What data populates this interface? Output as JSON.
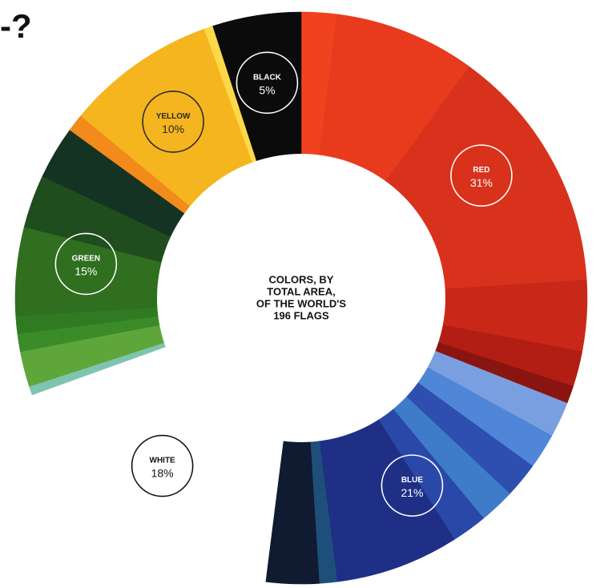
{
  "corner_text": "-?",
  "chart_data": {
    "type": "donut",
    "center_label": [
      "COLORS, BY",
      "TOTAL AREA,",
      "OF THE WORLD'S",
      "196 FLAGS"
    ],
    "start_angle_deg": 0,
    "direction": "clockwise",
    "slices": [
      {
        "label": "RED",
        "percent": 31,
        "color": "#d8321c",
        "label_color": "#ffffff"
      },
      {
        "label": "BLUE",
        "percent": 21,
        "color": "#1f2f86",
        "label_color": "#ffffff"
      },
      {
        "label": "WHITE",
        "percent": 18,
        "color": "#ffffff",
        "label_color": "#111111"
      },
      {
        "label": "GREEN",
        "percent": 15,
        "color": "#2f6f1f",
        "label_color": "#ffffff"
      },
      {
        "label": "YELLOW",
        "percent": 10,
        "color": "#f4b51e",
        "label_color": "#2a2a2a"
      },
      {
        "label": "BLACK",
        "percent": 5,
        "color": "#0b0b0b",
        "label_color": "#ffffff"
      }
    ],
    "bands": [
      {
        "group": "RED",
        "start": 0,
        "end": 2,
        "color": "#f0421f"
      },
      {
        "group": "RED",
        "start": 2,
        "end": 10,
        "color": "#e83a1d"
      },
      {
        "group": "RED",
        "start": 10,
        "end": 24,
        "color": "#d8321c"
      },
      {
        "group": "RED",
        "start": 24,
        "end": 28,
        "color": "#c92818"
      },
      {
        "group": "RED",
        "start": 28,
        "end": 30,
        "color": "#b21e14"
      },
      {
        "group": "RED",
        "start": 30,
        "end": 31,
        "color": "#8a1410"
      },
      {
        "group": "BLUE",
        "start": 31,
        "end": 33,
        "color": "#7a9fe0"
      },
      {
        "group": "BLUE",
        "start": 33,
        "end": 35,
        "color": "#4f86d8"
      },
      {
        "group": "BLUE",
        "start": 35,
        "end": 37,
        "color": "#2e4fb0"
      },
      {
        "group": "BLUE",
        "start": 37,
        "end": 39,
        "color": "#3e7cc9"
      },
      {
        "group": "BLUE",
        "start": 39,
        "end": 41,
        "color": "#2a48a8"
      },
      {
        "group": "BLUE",
        "start": 41,
        "end": 48,
        "color": "#1f2f86"
      },
      {
        "group": "BLUE",
        "start": 48,
        "end": 49,
        "color": "#1e4f7a"
      },
      {
        "group": "BLUE",
        "start": 49,
        "end": 52,
        "color": "#101a30"
      },
      {
        "group": "WHITE",
        "start": 52,
        "end": 69.5,
        "color": "#ffffff"
      },
      {
        "group": "WHITE",
        "start": 69.5,
        "end": 70,
        "color": "#7fc4b0"
      },
      {
        "group": "GREEN",
        "start": 70,
        "end": 72,
        "color": "#5fa63a"
      },
      {
        "group": "GREEN",
        "start": 72,
        "end": 73,
        "color": "#3b8c28"
      },
      {
        "group": "GREEN",
        "start": 73,
        "end": 74,
        "color": "#2f7a22"
      },
      {
        "group": "GREEN",
        "start": 74,
        "end": 79,
        "color": "#2f6f1f"
      },
      {
        "group": "GREEN",
        "start": 79,
        "end": 82,
        "color": "#1f4d1e"
      },
      {
        "group": "GREEN",
        "start": 82,
        "end": 85,
        "color": "#143322"
      },
      {
        "group": "YELLOW",
        "start": 85,
        "end": 86,
        "color": "#f28a1c"
      },
      {
        "group": "YELLOW",
        "start": 86,
        "end": 94.5,
        "color": "#f4b51e"
      },
      {
        "group": "YELLOW",
        "start": 94.5,
        "end": 95,
        "color": "#ffd84a"
      },
      {
        "group": "BLACK",
        "start": 95,
        "end": 100,
        "color": "#0b0b0b"
      }
    ]
  }
}
